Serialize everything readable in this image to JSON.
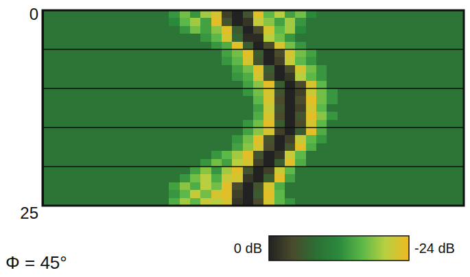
{
  "chart_data": {
    "type": "heatmap",
    "title": "Φ = 45°",
    "x": [
      0.5,
      1.5,
      2.5,
      3.5,
      4.5,
      5.5,
      6.5,
      7.5,
      8.5,
      9.5,
      10.5,
      11.5,
      12.5,
      13.5,
      14.5,
      15.5,
      16.5,
      17.5,
      18.5,
      19.5,
      20.5,
      21.5,
      22.5,
      23.5,
      24.5,
      25.5,
      26.5,
      27.5,
      28.5,
      29.5,
      30.5,
      31.5,
      32.5,
      33.5,
      34.5,
      35.5,
      36.5,
      37.5,
      38.5,
      39.5
    ],
    "y": [
      0.5,
      1.5,
      2.5,
      3.5,
      4.5,
      5.5,
      6.5,
      7.5,
      8.5,
      9.5,
      10.5,
      11.5,
      12.5,
      13.5,
      14.5,
      15.5,
      16.5,
      17.5,
      18.5,
      19.5,
      20.5,
      21.5,
      22.5,
      23.5,
      24.5
    ],
    "xlim": [
      0,
      40
    ],
    "ylim": [
      0,
      25
    ],
    "yticks": [
      0,
      {
        "value": 5,
        "label": null
      },
      {
        "value": 10,
        "label": null
      },
      {
        "value": 15,
        "label": null
      },
      {
        "value": 20,
        "label": null
      },
      25
    ],
    "grid": true,
    "tick_labels": "y",
    "cells": [
      [
        -9,
        -9,
        -9,
        -9,
        -9,
        -9,
        -9,
        -9,
        -9,
        -9,
        -9,
        -9,
        -13,
        -17,
        -13,
        -19,
        -22,
        -3,
        0,
        -5,
        -23,
        -16,
        -20,
        -14,
        -17,
        -12,
        -9,
        -9,
        -9,
        -9,
        -9,
        -9,
        -9,
        -9,
        -9,
        -9,
        -9,
        -9,
        -9,
        -9
      ],
      [
        -9,
        -9,
        -9,
        -9,
        -9,
        -9,
        -9,
        -9,
        -9,
        -9,
        -9,
        -9,
        -12,
        -16,
        -19,
        -14,
        -23,
        -5,
        0,
        -2,
        -21,
        -18,
        -14,
        -19,
        -13,
        -9,
        -9,
        -9,
        -9,
        -9,
        -9,
        -9,
        -9,
        -9,
        -9,
        -9,
        -9,
        -9,
        -9,
        -9
      ],
      [
        -9,
        -9,
        -9,
        -9,
        -9,
        -9,
        -9,
        -9,
        -9,
        -9,
        -9,
        -9,
        -9,
        -13,
        -17,
        -14,
        -18,
        -23,
        -6,
        0,
        -4,
        -22,
        -16,
        -19,
        -12,
        -9,
        -9,
        -9,
        -9,
        -9,
        -9,
        -9,
        -9,
        -9,
        -9,
        -9,
        -9,
        -9,
        -9,
        -9
      ],
      [
        -9,
        -9,
        -9,
        -9,
        -9,
        -9,
        -9,
        -9,
        -9,
        -9,
        -9,
        -9,
        -9,
        -9,
        -9,
        -13,
        -16,
        -22,
        -7,
        -1,
        -1,
        -20,
        -17,
        -13,
        -9,
        -9,
        -9,
        -9,
        -9,
        -9,
        -9,
        -9,
        -9,
        -9,
        -9,
        -9,
        -9,
        -9,
        -9,
        -9
      ],
      [
        -9,
        -9,
        -9,
        -9,
        -9,
        -9,
        -9,
        -9,
        -9,
        -9,
        -9,
        -9,
        -9,
        -9,
        -9,
        -9,
        -13,
        -15,
        -23,
        -6,
        0,
        -4,
        -22,
        -17,
        -13,
        -9,
        -9,
        -9,
        -9,
        -9,
        -9,
        -9,
        -9,
        -9,
        -9,
        -9,
        -9,
        -9,
        -9,
        -9
      ],
      [
        -9,
        -9,
        -9,
        -9,
        -9,
        -9,
        -9,
        -9,
        -9,
        -9,
        -9,
        -9,
        -9,
        -9,
        -9,
        -9,
        -9,
        -14,
        -17,
        -23,
        -6,
        0,
        -4,
        -22,
        -17,
        -14,
        -9,
        -9,
        -9,
        -9,
        -9,
        -9,
        -9,
        -9,
        -9,
        -9,
        -9,
        -9,
        -9,
        -9
      ],
      [
        -9,
        -9,
        -9,
        -9,
        -9,
        -9,
        -9,
        -9,
        -9,
        -9,
        -9,
        -9,
        -9,
        -9,
        -9,
        -9,
        -9,
        -13,
        -16,
        -22,
        -5,
        0,
        -3,
        -21,
        -16,
        -13,
        -9,
        -9,
        -9,
        -9,
        -9,
        -9,
        -9,
        -9,
        -9,
        -9,
        -9,
        -9,
        -9,
        -9
      ],
      [
        -9,
        -9,
        -9,
        -9,
        -9,
        -9,
        -9,
        -9,
        -9,
        -9,
        -9,
        -9,
        -9,
        -9,
        -9,
        -9,
        -9,
        -9,
        -14,
        -17,
        -23,
        -6,
        0,
        -4,
        -22,
        -17,
        -13,
        -9,
        -9,
        -9,
        -9,
        -9,
        -9,
        -9,
        -9,
        -9,
        -9,
        -9,
        -9,
        -9
      ],
      [
        -9,
        -9,
        -9,
        -9,
        -9,
        -9,
        -9,
        -9,
        -9,
        -9,
        -9,
        -9,
        -9,
        -9,
        -9,
        -9,
        -9,
        -9,
        -13,
        -15,
        -22,
        -5,
        0,
        -2,
        -20,
        -16,
        -13,
        -9,
        -9,
        -9,
        -9,
        -9,
        -9,
        -9,
        -9,
        -9,
        -9,
        -9,
        -9,
        -9
      ],
      [
        -9,
        -9,
        -9,
        -9,
        -9,
        -9,
        -9,
        -9,
        -9,
        -9,
        -9,
        -9,
        -9,
        -9,
        -9,
        -9,
        -9,
        -9,
        -9,
        -14,
        -18,
        -23,
        -6,
        0,
        -4,
        -22,
        -16,
        -9,
        -9,
        -9,
        -9,
        -9,
        -9,
        -9,
        -9,
        -9,
        -9,
        -9,
        -9,
        -9
      ],
      [
        -9,
        -9,
        -9,
        -9,
        -9,
        -9,
        -9,
        -9,
        -9,
        -9,
        -9,
        -9,
        -9,
        -9,
        -9,
        -9,
        -9,
        -9,
        -9,
        -13,
        -17,
        -22,
        -5,
        0,
        -3,
        -21,
        -17,
        -13,
        -9,
        -9,
        -9,
        -9,
        -9,
        -9,
        -9,
        -9,
        -9,
        -9,
        -9,
        -9
      ],
      [
        -9,
        -9,
        -9,
        -9,
        -9,
        -9,
        -9,
        -9,
        -9,
        -9,
        -9,
        -9,
        -9,
        -9,
        -9,
        -9,
        -9,
        -9,
        -9,
        -9,
        -16,
        -22,
        -4,
        0,
        -4,
        -23,
        -17,
        -13,
        -9,
        -9,
        -9,
        -9,
        -9,
        -9,
        -9,
        -9,
        -9,
        -9,
        -9,
        -9
      ],
      [
        -9,
        -9,
        -9,
        -9,
        -9,
        -9,
        -9,
        -9,
        -9,
        -9,
        -9,
        -9,
        -9,
        -9,
        -9,
        -9,
        -9,
        -9,
        -9,
        -9,
        -14,
        -21,
        -5,
        0,
        -3,
        -22,
        -16,
        -9,
        -9,
        -9,
        -9,
        -9,
        -9,
        -9,
        -9,
        -9,
        -9,
        -9,
        -9,
        -9
      ],
      [
        -9,
        -9,
        -9,
        -9,
        -9,
        -9,
        -9,
        -9,
        -9,
        -9,
        -9,
        -9,
        -9,
        -9,
        -9,
        -9,
        -9,
        -9,
        -9,
        -9,
        -15,
        -22,
        -4,
        0,
        -5,
        -23,
        -18,
        -13,
        -9,
        -9,
        -9,
        -9,
        -9,
        -9,
        -9,
        -9,
        -9,
        -9,
        -9,
        -9
      ],
      [
        -9,
        -9,
        -9,
        -9,
        -9,
        -9,
        -9,
        -9,
        -9,
        -9,
        -9,
        -9,
        -9,
        -9,
        -9,
        -9,
        -9,
        -9,
        -9,
        -13,
        -17,
        -23,
        -6,
        0,
        -4,
        -22,
        -16,
        -9,
        -9,
        -9,
        -9,
        -9,
        -9,
        -9,
        -9,
        -9,
        -9,
        -9,
        -9,
        -9
      ],
      [
        -9,
        -9,
        -9,
        -9,
        -9,
        -9,
        -9,
        -9,
        -9,
        -9,
        -9,
        -9,
        -9,
        -9,
        -9,
        -9,
        -9,
        -9,
        -9,
        -14,
        -18,
        -22,
        -3,
        0,
        -6,
        -23,
        -15,
        -9,
        -9,
        -9,
        -9,
        -9,
        -9,
        -9,
        -9,
        -9,
        -9,
        -9,
        -9,
        -9
      ],
      [
        -9,
        -9,
        -9,
        -9,
        -9,
        -9,
        -9,
        -9,
        -9,
        -9,
        -9,
        -9,
        -9,
        -9,
        -9,
        -9,
        -9,
        -9,
        -13,
        -17,
        -23,
        -5,
        0,
        -3,
        -21,
        -16,
        -13,
        -9,
        -9,
        -9,
        -9,
        -9,
        -9,
        -9,
        -9,
        -9,
        -9,
        -9,
        -9,
        -9
      ],
      [
        -9,
        -9,
        -9,
        -9,
        -9,
        -9,
        -9,
        -9,
        -9,
        -9,
        -9,
        -9,
        -9,
        -9,
        -9,
        -9,
        -9,
        -9,
        -14,
        -18,
        -22,
        -4,
        0,
        -5,
        -23,
        -15,
        -9,
        -9,
        -9,
        -9,
        -9,
        -9,
        -9,
        -9,
        -9,
        -9,
        -9,
        -9,
        -9,
        -9
      ],
      [
        -9,
        -9,
        -9,
        -9,
        -9,
        -9,
        -9,
        -9,
        -9,
        -9,
        -9,
        -9,
        -9,
        -9,
        -9,
        -9,
        -13,
        -16,
        -19,
        -23,
        -5,
        0,
        -2,
        -21,
        -16,
        -9,
        -9,
        -9,
        -9,
        -9,
        -9,
        -9,
        -9,
        -9,
        -9,
        -9,
        -9,
        -9,
        -9,
        -9
      ],
      [
        -9,
        -9,
        -9,
        -9,
        -9,
        -9,
        -9,
        -9,
        -9,
        -9,
        -9,
        -9,
        -9,
        -9,
        -9,
        -13,
        -17,
        -14,
        -20,
        -22,
        -3,
        0,
        -6,
        -23,
        -15,
        -9,
        -9,
        -9,
        -9,
        -9,
        -9,
        -9,
        -9,
        -9,
        -9,
        -9,
        -9,
        -9,
        -9,
        -9
      ],
      [
        -9,
        -9,
        -9,
        -9,
        -9,
        -9,
        -9,
        -9,
        -9,
        -9,
        -9,
        -9,
        -9,
        -9,
        -14,
        -18,
        -13,
        -19,
        -23,
        -5,
        0,
        -3,
        -21,
        -16,
        -9,
        -9,
        -9,
        -9,
        -9,
        -9,
        -9,
        -9,
        -9,
        -9,
        -9,
        -9,
        -9,
        -9,
        -9,
        -9
      ],
      [
        -9,
        -9,
        -9,
        -9,
        -9,
        -9,
        -9,
        -9,
        -9,
        -9,
        -9,
        -9,
        -9,
        -13,
        -17,
        -20,
        -15,
        -21,
        -22,
        -2,
        0,
        -6,
        -23,
        -14,
        -9,
        -9,
        -9,
        -9,
        -9,
        -9,
        -9,
        -9,
        -9,
        -9,
        -9,
        -9,
        -9,
        -9,
        -9,
        -9
      ],
      [
        -9,
        -9,
        -9,
        -9,
        -9,
        -9,
        -9,
        -9,
        -9,
        -9,
        -9,
        -9,
        -14,
        -18,
        -15,
        -20,
        -17,
        -23,
        -4,
        0,
        -5,
        -22,
        -15,
        -9,
        -9,
        -9,
        -9,
        -9,
        -9,
        -9,
        -9,
        -9,
        -9,
        -9,
        -9,
        -9,
        -9,
        -9,
        -9,
        -9
      ],
      [
        -9,
        -9,
        -9,
        -9,
        -9,
        -9,
        -9,
        -9,
        -9,
        -9,
        -9,
        -9,
        -13,
        -16,
        -21,
        -17,
        -22,
        -23,
        -3,
        0,
        -6,
        -23,
        -16,
        -9,
        -9,
        -9,
        -9,
        -9,
        -9,
        -9,
        -9,
        -9,
        -9,
        -9,
        -9,
        -9,
        -9,
        -9,
        -9,
        -9
      ],
      [
        -9,
        -9,
        -9,
        -9,
        -9,
        -9,
        -9,
        -9,
        -9,
        -9,
        -9,
        -9,
        -15,
        -19,
        -16,
        -21,
        -20,
        -22,
        -2,
        0,
        -4,
        -22,
        -16,
        -13,
        -9,
        -9,
        -9,
        -9,
        -9,
        -9,
        -9,
        -9,
        -9,
        -9,
        -9,
        -9,
        -9,
        -9,
        -9,
        -9
      ]
    ],
    "colorbar": {
      "range": [
        0,
        -24
      ],
      "ticks": [
        {
          "value": 0,
          "label": "0 dB"
        },
        {
          "value": -24,
          "label": "-24 dB"
        }
      ],
      "colors": [
        "#222222",
        "#4a4a2c",
        "#2c6e34",
        "#2a8a3c",
        "#5cb848",
        "#b8d040",
        "#f0b820"
      ]
    }
  }
}
